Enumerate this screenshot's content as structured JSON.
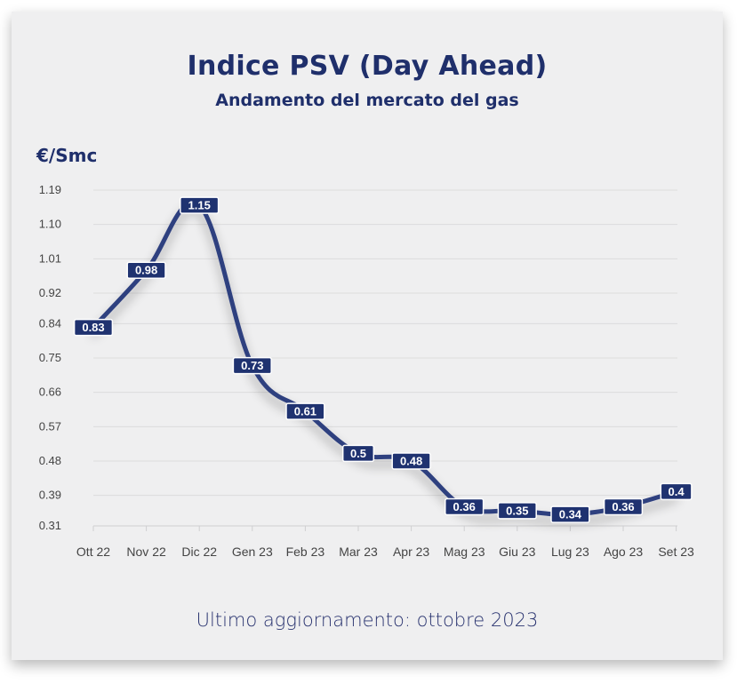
{
  "title": "Indice PSV (Day Ahead)",
  "subtitle": "Andamento del mercato del gas",
  "unit_label": "€/Smc",
  "footer": "Ultimo aggiornamento: ottobre 2023",
  "colors": {
    "line": "#2e3f7f",
    "label_bg": "#1f3270",
    "title": "#1f2f6b",
    "background": "#efeff0"
  },
  "chart_data": {
    "type": "line",
    "title": "Indice PSV (Day Ahead)",
    "subtitle": "Andamento del mercato del gas",
    "ylabel": "€/Smc",
    "xlabel": "",
    "categories": [
      "Ott 22",
      "Nov 22",
      "Dic 22",
      "Gen 23",
      "Feb 23",
      "Mar 23",
      "Apr 23",
      "Mag 23",
      "Giu 23",
      "Lug 23",
      "Ago 23",
      "Set 23"
    ],
    "values": [
      0.83,
      0.98,
      1.15,
      0.73,
      0.61,
      0.5,
      0.48,
      0.36,
      0.35,
      0.34,
      0.36,
      0.4
    ],
    "value_labels": [
      "0.83",
      "0.98",
      "1.15",
      "0.73",
      "0.61",
      "0.5",
      "0.48",
      "0.36",
      "0.35",
      "0.34",
      "0.36",
      "0.4"
    ],
    "yticks": [
      "0.31",
      "0.39",
      "0.48",
      "0.57",
      "0.66",
      "0.75",
      "0.84",
      "0.92",
      "1.01",
      "1.10",
      "1.19"
    ],
    "ylim": [
      0.31,
      1.19
    ],
    "grid": true,
    "legend": "none",
    "smooth": true
  }
}
